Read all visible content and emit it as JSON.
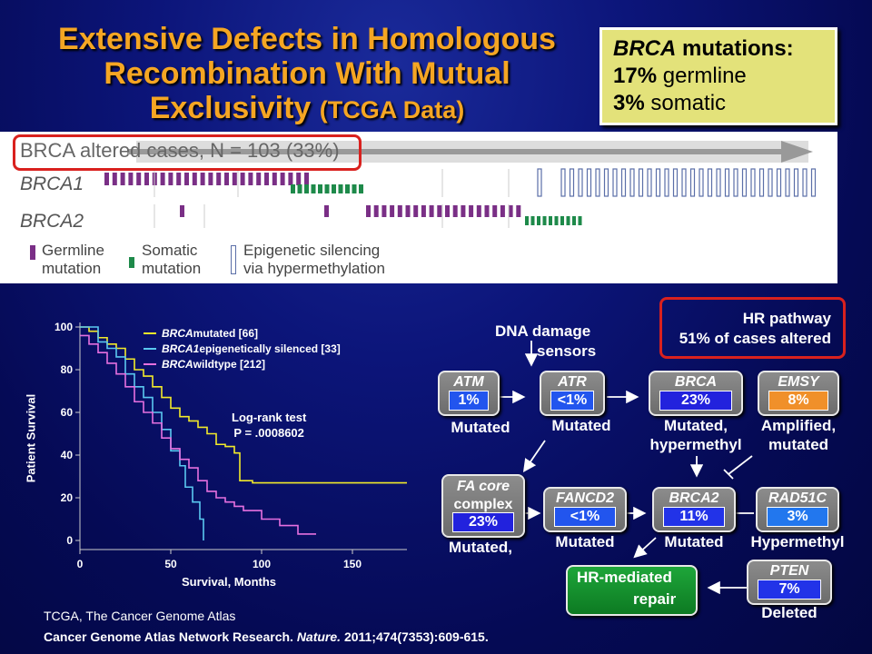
{
  "title": {
    "line1": "Extensive Defects in Homologous",
    "line2": "Recombination With Mutual",
    "line3": "Exclusivity",
    "line3_small": "(TCGA Data)"
  },
  "callout": {
    "line1_italic": "BRCA",
    "line1_rest": "mutations:",
    "line2_bold": "17%",
    "line2_rest": "germline",
    "line3_bold": "3%",
    "line3_rest": "somatic"
  },
  "oncoprint": {
    "header": "BRCA altered cases, N = 103 (33%)",
    "rows": [
      "BRCA1",
      "BRCA2"
    ],
    "legend": [
      {
        "line1": "Germline",
        "line2": "mutation",
        "color": "#7a2f86"
      },
      {
        "line1": "Somatic",
        "line2": "mutation",
        "color": "#1e8a4a"
      },
      {
        "line1": "Epigenetic silencing",
        "line2": "via hypermethylation",
        "color": "#5b6fa8"
      }
    ]
  },
  "chart_data": {
    "type": "line",
    "ylabel": "Patient Survival",
    "xlabel": "Survival, Months",
    "xlim": [
      0,
      180
    ],
    "ylim": [
      0,
      100
    ],
    "xticks": [
      "0",
      "50",
      "100",
      "150"
    ],
    "yticks": [
      "0",
      "20",
      "40",
      "60",
      "80",
      "100"
    ],
    "annotation": {
      "line1": "Log-rank test",
      "line2": "P = .0008602"
    },
    "series": [
      {
        "name": "BRCA mutated [66]",
        "name_italic": "BRCA",
        "name_rest": "mutated [66]",
        "color": "#f2ea2a",
        "points": [
          [
            0,
            100
          ],
          [
            5,
            98
          ],
          [
            10,
            95
          ],
          [
            15,
            92
          ],
          [
            20,
            90
          ],
          [
            25,
            85
          ],
          [
            30,
            80
          ],
          [
            35,
            77
          ],
          [
            40,
            72
          ],
          [
            45,
            67
          ],
          [
            50,
            62
          ],
          [
            55,
            58
          ],
          [
            60,
            56
          ],
          [
            65,
            53
          ],
          [
            70,
            50
          ],
          [
            75,
            45
          ],
          [
            80,
            44
          ],
          [
            85,
            41
          ],
          [
            88,
            28
          ],
          [
            95,
            27
          ],
          [
            180,
            27
          ]
        ]
      },
      {
        "name": "BRCA1 epigenetically silenced [33]",
        "name_italic": "BRCA1",
        "name_rest": "epigenetically silenced [33]",
        "color": "#5ac8f0",
        "points": [
          [
            0,
            100
          ],
          [
            8,
            100
          ],
          [
            10,
            93
          ],
          [
            15,
            90
          ],
          [
            20,
            86
          ],
          [
            25,
            78
          ],
          [
            30,
            72
          ],
          [
            35,
            67
          ],
          [
            40,
            60
          ],
          [
            45,
            52
          ],
          [
            50,
            42
          ],
          [
            55,
            35
          ],
          [
            58,
            25
          ],
          [
            62,
            18
          ],
          [
            66,
            10
          ],
          [
            68,
            0
          ]
        ]
      },
      {
        "name": "BRCA wildtype [212]",
        "name_italic": "BRCA",
        "name_rest": "wildtype [212]",
        "color": "#e670e0",
        "points": [
          [
            0,
            96
          ],
          [
            5,
            92
          ],
          [
            10,
            88
          ],
          [
            15,
            83
          ],
          [
            20,
            78
          ],
          [
            25,
            72
          ],
          [
            30,
            65
          ],
          [
            35,
            60
          ],
          [
            40,
            55
          ],
          [
            45,
            48
          ],
          [
            50,
            43
          ],
          [
            55,
            38
          ],
          [
            60,
            34
          ],
          [
            65,
            28
          ],
          [
            70,
            23
          ],
          [
            75,
            20
          ],
          [
            80,
            18
          ],
          [
            85,
            16
          ],
          [
            90,
            14
          ],
          [
            100,
            10
          ],
          [
            110,
            7
          ],
          [
            120,
            3
          ],
          [
            130,
            3
          ]
        ]
      }
    ]
  },
  "pathway": {
    "hr_box": {
      "line1": "HR pathway",
      "line2": "51% of cases altered"
    },
    "dna_label": {
      "line1": "DNA damage",
      "line2": "sensors"
    },
    "nodes": [
      {
        "name": "ATM",
        "pct": "1%",
        "caption": "Mutated",
        "pct_color": "#2255ee"
      },
      {
        "name": "ATR",
        "pct": "<1%",
        "caption": "Mutated",
        "pct_color": "#2255ee"
      },
      {
        "name": "BRCA",
        "pct": "23%",
        "caption1": "Mutated,",
        "caption2": "hypermethyl",
        "pct_color": "#2222dd"
      },
      {
        "name": "EMSY",
        "pct": "8%",
        "caption1": "Amplified,",
        "caption2": "mutated",
        "pct_color": "#f0902a"
      },
      {
        "name1": "FA core",
        "name2": "complex",
        "pct": "23%",
        "caption": "Mutated,",
        "pct_color": "#2222dd"
      },
      {
        "name": "FANCD2",
        "pct": "<1%",
        "caption": "Mutated",
        "pct_color": "#2255ee"
      },
      {
        "name": "BRCA2",
        "pct": "11%",
        "caption": "Mutated",
        "pct_color": "#2233e8"
      },
      {
        "name": "RAD51C",
        "pct": "3%",
        "caption": "Hypermethyl",
        "pct_color": "#2277ee"
      },
      {
        "name": "PTEN",
        "pct": "7%",
        "caption": "Deleted",
        "pct_color": "#2233e8"
      }
    ],
    "repair": {
      "line1": "HR-mediated",
      "line2": "repair"
    }
  },
  "footer": {
    "note": "TCGA, The Cancer Genome Atlas",
    "cite_pre": "Cancer Genome Atlas Network Research.",
    "cite_journal": "Nature.",
    "cite_post": "2011;474(7353):609-615."
  }
}
